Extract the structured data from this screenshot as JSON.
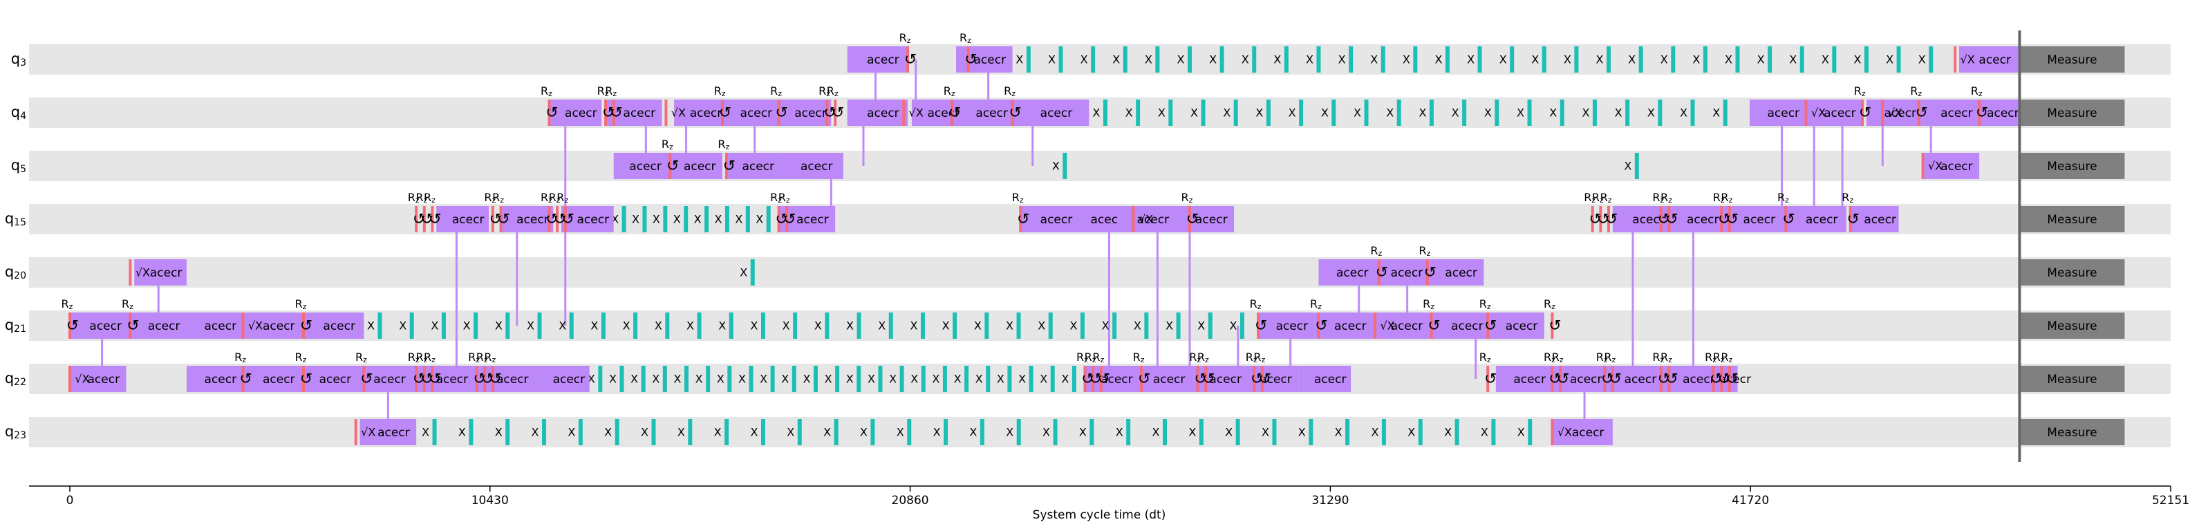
{
  "chart_data": {
    "type": "timeline",
    "title": "",
    "xlabel": "System cycle time (dt)",
    "ylabel": "",
    "xlim": [
      -1000,
      52151
    ],
    "xticks": [
      0,
      10430,
      20860,
      31290,
      41720,
      52151
    ],
    "xtick_labels": [
      "0",
      "10430",
      "20860",
      "31290",
      "41720",
      "52151"
    ],
    "grid": false,
    "measure_time": 48400,
    "qubits": [
      {
        "name": "q",
        "sub": "3"
      },
      {
        "name": "q",
        "sub": "4"
      },
      {
        "name": "q",
        "sub": "5"
      },
      {
        "name": "q",
        "sub": "15"
      },
      {
        "name": "q",
        "sub": "20"
      },
      {
        "name": "q",
        "sub": "21"
      },
      {
        "name": "q",
        "sub": "22"
      },
      {
        "name": "q",
        "sub": "23"
      }
    ],
    "gate_label": "acecr",
    "rz_label": "R",
    "rz_sub": "z",
    "sx_label": "√X",
    "x_label": "X",
    "measure_label": "Measure",
    "rows": [
      {
        "ecr": [
          [
            19300,
            20800
          ],
          [
            22000,
            23400
          ],
          [
            46900,
            48400
          ]
        ],
        "rz": [
          20800,
          22300
        ],
        "sx": [
          46800
        ],
        "x_start": 23400,
        "x_end": 46600,
        "x_count": 29
      },
      {
        "ecr": [
          [
            11900,
            13200
          ],
          [
            13300,
            14700
          ],
          [
            15000,
            16300
          ],
          [
            16200,
            17600
          ],
          [
            17600,
            18900
          ],
          [
            19300,
            20800
          ],
          [
            20900,
            22200
          ],
          [
            22100,
            23400
          ],
          [
            23400,
            25300
          ],
          [
            41700,
            43100
          ],
          [
            43100,
            44500
          ],
          [
            44600,
            46000
          ],
          [
            46000,
            47400
          ],
          [
            47300,
            48400
          ]
        ],
        "rz": [
          11900,
          13300,
          13500,
          16200,
          17600,
          18800,
          19000,
          21900,
          23400,
          44500,
          45900,
          47400
        ],
        "sx": [
          14800,
          20700,
          43100,
          45000
        ],
        "x_start": 25300,
        "x_end": 41500,
        "x_count": 20
      },
      {
        "ecr": [
          [
            13500,
            14800
          ],
          [
            14800,
            16200
          ],
          [
            16300,
            17600
          ],
          [
            17600,
            19200
          ],
          [
            46000,
            47400
          ]
        ],
        "rz": [
          14900,
          16300
        ],
        "sx": [
          46000
        ],
        "x_start": 17600,
        "x_end": 46000,
        "x_count": 2
      },
      {
        "ecr": [
          [
            9100,
            10400
          ],
          [
            10700,
            12000
          ],
          [
            12200,
            13500
          ],
          [
            17600,
            19000
          ],
          [
            23600,
            25100
          ],
          [
            24900,
            26300
          ],
          [
            26000,
            27500
          ],
          [
            27500,
            28900
          ],
          [
            38300,
            39800
          ],
          [
            39700,
            41100
          ],
          [
            41000,
            42600
          ],
          [
            42600,
            44100
          ],
          [
            44200,
            45400
          ]
        ],
        "rz": [
          8600,
          8800,
          9000,
          10500,
          10700,
          11900,
          12100,
          12300,
          17600,
          17800,
          23600,
          27800,
          37800,
          38000,
          38200,
          39500,
          39700,
          41000,
          41200,
          42600,
          44200
        ],
        "sx": [
          26400
        ],
        "x_start": 13500,
        "x_end": 17600,
        "x_count": 8
      },
      {
        "ecr": [
          [
            1600,
            2900
          ],
          [
            31000,
            32400
          ],
          [
            32400,
            33700
          ],
          [
            33700,
            35100
          ]
        ],
        "rz": [
          32500,
          33700
        ],
        "sx": [
          1500
        ],
        "x_start": 2900,
        "x_end": 31000,
        "x_count": 1
      },
      {
        "ecr": [
          [
            0,
            1500
          ],
          [
            1500,
            2900
          ],
          [
            2900,
            4300
          ],
          [
            4300,
            5800
          ],
          [
            5800,
            7300
          ],
          [
            29500,
            30900
          ],
          [
            30900,
            32400
          ],
          [
            32300,
            33800
          ],
          [
            33800,
            35300
          ],
          [
            35200,
            36600
          ]
        ],
        "rz": [
          0,
          1500,
          5800,
          29500,
          31000,
          33800,
          35200,
          36800
        ],
        "sx": [
          4300,
          32400
        ],
        "x_start": 7300,
        "x_end": 29500,
        "x_count": 28
      },
      {
        "ecr": [
          [
            0,
            1400
          ],
          [
            2900,
            4300
          ],
          [
            4300,
            5800
          ],
          [
            5800,
            7100
          ],
          [
            7000,
            8600
          ],
          [
            8600,
            10100
          ],
          [
            10100,
            11600
          ],
          [
            11600,
            12900
          ],
          [
            25200,
            26500
          ],
          [
            26400,
            27900
          ],
          [
            27900,
            29200
          ],
          [
            29100,
            30500
          ],
          [
            30500,
            31800
          ],
          [
            35400,
            36800
          ],
          [
            36800,
            38200
          ],
          [
            38100,
            39600
          ],
          [
            39600,
            41000
          ],
          [
            41000,
            41400
          ]
        ],
        "rz": [
          4300,
          5800,
          7300,
          8600,
          8800,
          9000,
          10100,
          10300,
          10500,
          25200,
          25400,
          25600,
          26600,
          28000,
          28200,
          29400,
          29600,
          35200,
          36800,
          37000,
          38100,
          38300,
          39500,
          39700,
          40800,
          41000,
          41200
        ],
        "sx": [
          0
        ],
        "x_start": 12900,
        "x_end": 25200,
        "x_count": 23
      },
      {
        "ecr": [
          [
            7200,
            8600
          ],
          [
            36800,
            38300
          ]
        ],
        "rz": [],
        "sx": [
          7100,
          36800
        ],
        "x_start": 8600,
        "x_end": 36700,
        "x_count": 31
      }
    ],
    "links": [
      [
        20000,
        0,
        1
      ],
      [
        21000,
        0,
        1
      ],
      [
        22800,
        0,
        1
      ],
      [
        12300,
        1,
        5
      ],
      [
        14300,
        1,
        2
      ],
      [
        15300,
        1,
        2
      ],
      [
        17000,
        1,
        2
      ],
      [
        19700,
        1,
        2
      ],
      [
        23900,
        1,
        2
      ],
      [
        42500,
        1,
        3
      ],
      [
        43300,
        1,
        3
      ],
      [
        44000,
        1,
        3
      ],
      [
        46200,
        1,
        2
      ],
      [
        45000,
        1,
        2
      ],
      [
        18900,
        2,
        3
      ],
      [
        9600,
        3,
        6
      ],
      [
        11100,
        3,
        5
      ],
      [
        25800,
        3,
        6
      ],
      [
        27000,
        3,
        6
      ],
      [
        27800,
        3,
        6
      ],
      [
        38800,
        3,
        6
      ],
      [
        40300,
        3,
        6
      ],
      [
        2200,
        4,
        5
      ],
      [
        32000,
        4,
        5
      ],
      [
        33200,
        4,
        5
      ],
      [
        800,
        5,
        6
      ],
      [
        29000,
        5,
        6
      ],
      [
        30300,
        5,
        6
      ],
      [
        34900,
        5,
        6
      ],
      [
        7900,
        6,
        7
      ],
      [
        37600,
        6,
        7
      ]
    ]
  }
}
